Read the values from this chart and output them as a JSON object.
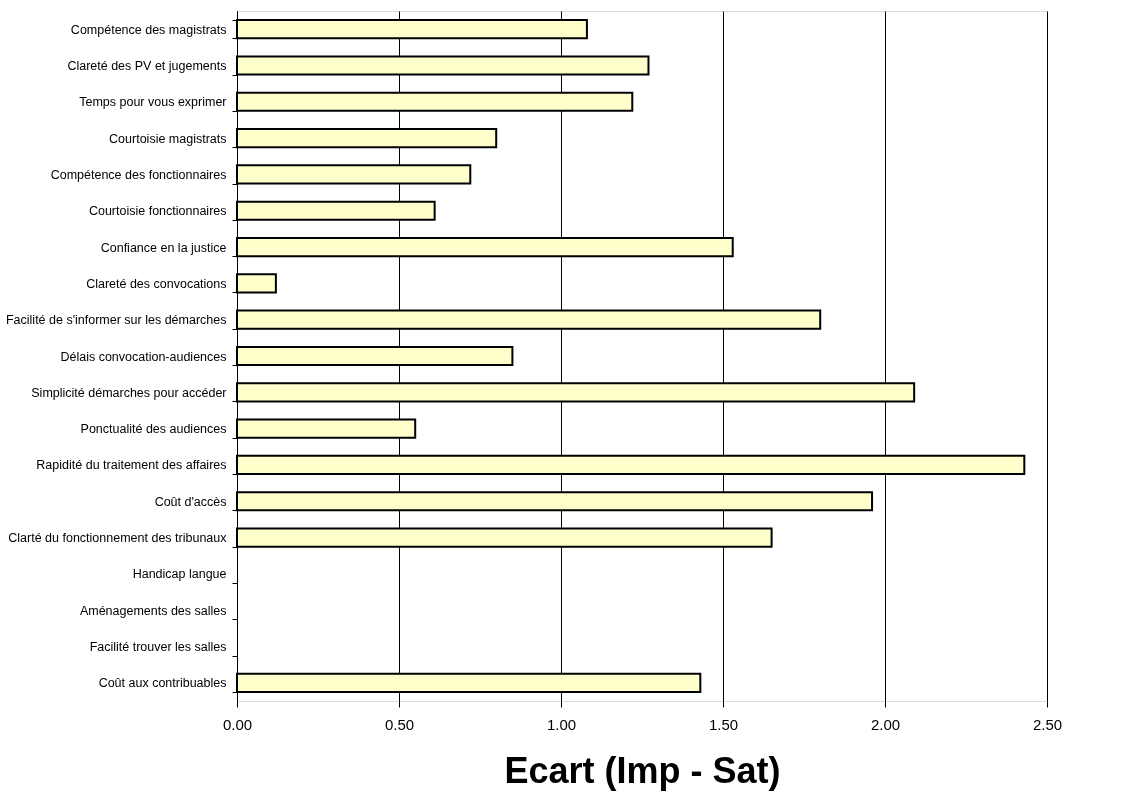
{
  "chart_data": {
    "type": "bar",
    "orientation": "horizontal",
    "xlabel": "Ecart (Imp - Sat)",
    "categories": [
      "Compétence des magistrats",
      "Clareté des PV et jugements",
      "Temps pour vous exprimer",
      "Courtoisie magistrats",
      "Compétence des fonctionnaires",
      "Courtoisie fonctionnaires",
      "Confiance en la justice",
      "Clareté des convocations",
      "Facilité de s'informer sur les démarches",
      "Délais convocation-audiences",
      "Simplicité démarches pour accéder",
      "Ponctualité des audiences",
      "Rapidité du traitement des affaires",
      "Coût d'accès",
      "Clarté du fonctionnement des tribunaux",
      "Handicap langue",
      "Aménagements des salles",
      "Facilité trouver les salles",
      "Coût aux contribuables"
    ],
    "values": [
      1.08,
      1.27,
      1.22,
      0.8,
      0.72,
      0.61,
      1.53,
      0.12,
      1.8,
      0.85,
      2.09,
      0.55,
      2.43,
      1.96,
      1.65,
      null,
      null,
      null,
      1.43
    ],
    "color": "#ffffcc",
    "xlim": [
      0,
      2.5
    ],
    "xticks": [
      {
        "value": 0,
        "label": "0.00"
      },
      {
        "value": 0.5,
        "label": "0.50"
      },
      {
        "value": 1,
        "label": "1.00"
      },
      {
        "value": 1.5,
        "label": "1.50"
      },
      {
        "value": 2,
        "label": "2.00"
      },
      {
        "value": 2.5,
        "label": "2.50"
      }
    ],
    "grid": "x"
  }
}
